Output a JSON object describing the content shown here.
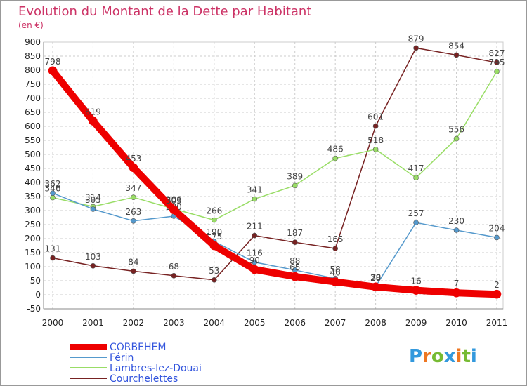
{
  "chart_data": {
    "type": "line",
    "title": "Evolution du Montant de la Dette par Habitant",
    "unit_label": "(en €)",
    "x": [
      "2000",
      "2001",
      "2002",
      "2003",
      "2004",
      "2005",
      "2006",
      "2007",
      "2008",
      "2009",
      "2010",
      "2011"
    ],
    "ylim": [
      -50,
      900
    ],
    "yticks": [
      -50,
      0,
      50,
      100,
      150,
      200,
      250,
      300,
      350,
      400,
      450,
      500,
      550,
      600,
      650,
      700,
      750,
      800,
      850,
      900
    ],
    "grid": true,
    "legend_position": "bottom-left",
    "series": [
      {
        "name": "CORBEHEM",
        "color": "#ee0000",
        "values": [
          798,
          619,
          453,
          303,
          175,
          90,
          65,
          46,
          28,
          16,
          7,
          2
        ]
      },
      {
        "name": "Férin",
        "color": "#5599cc",
        "values": [
          362,
          305,
          263,
          280,
          190,
          116,
          88,
          58,
          30,
          257,
          230,
          204
        ]
      },
      {
        "name": "Lambres-lez-Douai",
        "color": "#99dd66",
        "values": [
          346,
          314,
          347,
          306,
          266,
          341,
          389,
          486,
          518,
          417,
          556,
          795
        ]
      },
      {
        "name": "Courchelettes",
        "color": "#772222",
        "values": [
          131,
          103,
          84,
          68,
          53,
          211,
          187,
          165,
          601,
          879,
          854,
          827
        ]
      }
    ]
  },
  "logo": {
    "text": "Proxiti"
  }
}
